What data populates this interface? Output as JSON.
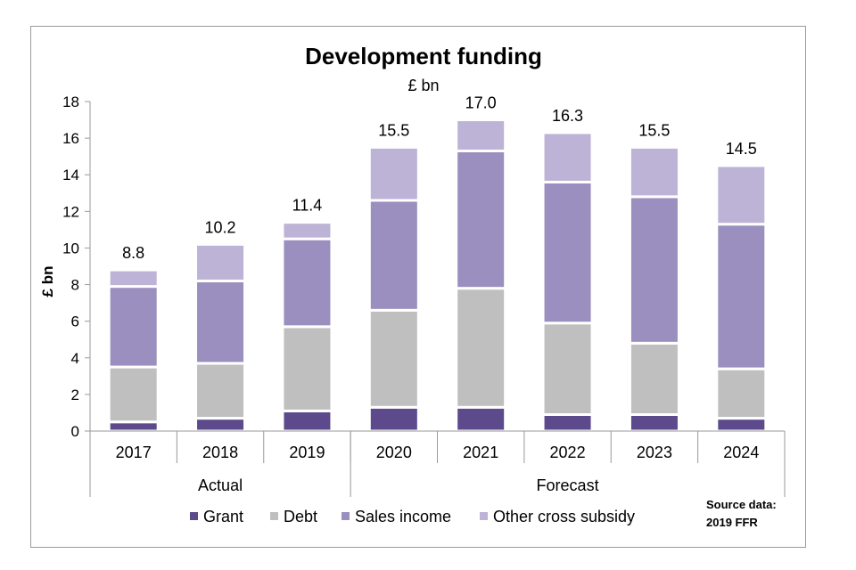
{
  "chart_data": {
    "type": "bar",
    "stacked": true,
    "title": "Development funding",
    "subtitle": "£ bn",
    "ylabel": "£ bn",
    "xlabel": "",
    "ylim": [
      0,
      18
    ],
    "yticks": [
      0,
      2,
      4,
      6,
      8,
      10,
      12,
      14,
      16,
      18
    ],
    "categories": [
      "2017",
      "2018",
      "2019",
      "2020",
      "2021",
      "2022",
      "2023",
      "2024"
    ],
    "groups": [
      {
        "label": "Actual",
        "categories": [
          "2017",
          "2018",
          "2019"
        ]
      },
      {
        "label": "Forecast",
        "categories": [
          "2020",
          "2021",
          "2022",
          "2023",
          "2024"
        ]
      }
    ],
    "series": [
      {
        "name": "Grant",
        "color": "#5c4a8c",
        "values": [
          0.5,
          0.7,
          1.1,
          1.3,
          1.3,
          0.9,
          0.9,
          0.7
        ]
      },
      {
        "name": "Debt",
        "color": "#bfbfbf",
        "values": [
          3.0,
          3.0,
          4.6,
          5.3,
          6.5,
          5.0,
          3.9,
          2.7
        ]
      },
      {
        "name": "Sales income",
        "color": "#9a8fbe",
        "values": [
          4.4,
          4.5,
          4.8,
          6.0,
          7.5,
          7.7,
          8.0,
          7.9
        ]
      },
      {
        "name": "Other cross subsidy",
        "color": "#bdb3d6",
        "values": [
          0.9,
          2.0,
          0.9,
          2.9,
          1.7,
          2.7,
          2.7,
          3.2
        ]
      }
    ],
    "totals": [
      "8.8",
      "10.2",
      "11.4",
      "15.5",
      "17.0",
      "16.3",
      "15.5",
      "14.5"
    ],
    "legend_position": "bottom",
    "source_note": [
      "Source data:",
      "2019 FFR"
    ]
  }
}
